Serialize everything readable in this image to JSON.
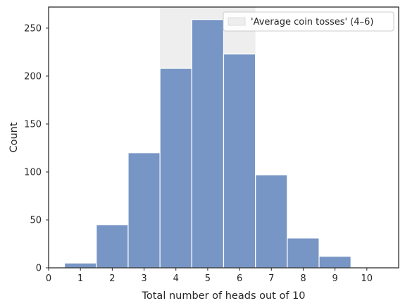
{
  "chart_data": {
    "type": "bar",
    "title": "",
    "xlabel": "Total number of heads out of 10",
    "ylabel": "Count",
    "categories": [
      1,
      2,
      3,
      4,
      5,
      6,
      7,
      8,
      9
    ],
    "values": [
      5,
      45,
      120,
      208,
      259,
      223,
      97,
      31,
      12
    ],
    "bar_width": 1,
    "xlim": [
      0,
      11
    ],
    "ylim": [
      0,
      272
    ],
    "xticks": [
      0,
      1,
      2,
      3,
      4,
      5,
      6,
      7,
      8,
      9,
      10
    ],
    "yticks": [
      0,
      50,
      100,
      150,
      200,
      250
    ],
    "highlight_span": {
      "from": 3.5,
      "to": 6.5,
      "label": "'Average coin tosses' (4–6)",
      "color": "#eeeeee"
    },
    "bar_color": "#7795c5",
    "legend_position": "top-right",
    "grid": false
  }
}
